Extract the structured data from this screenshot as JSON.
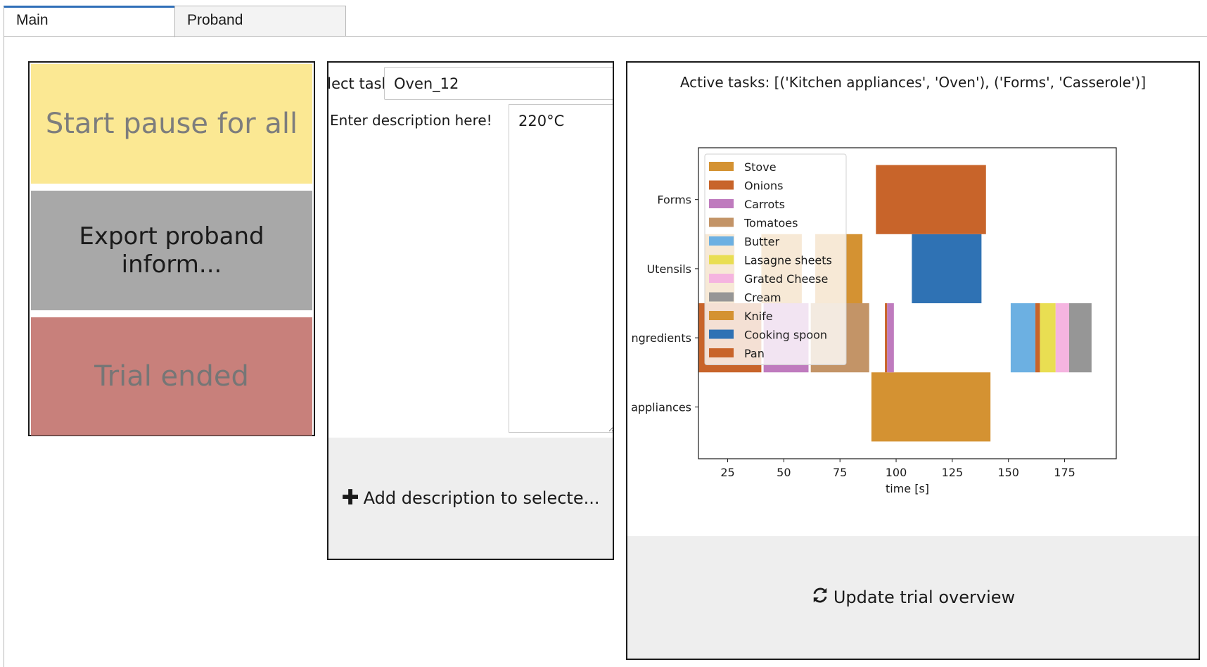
{
  "tabs": [
    {
      "label": "Main",
      "active": true
    },
    {
      "label": "Proband",
      "active": false
    }
  ],
  "controls": {
    "start_pause_label": "Start pause for all",
    "export_label": "Export proband inform...",
    "trial_ended_label": "Trial ended",
    "colors": {
      "pause": "#fbe893",
      "export": "#a8a8a8",
      "trial_ended": "#c8807b"
    }
  },
  "description": {
    "select_task_label": "Select task",
    "task_value": "Oven_12",
    "desc_label": "Enter description here!",
    "desc_value": "220°C",
    "add_button_label": "Add description to selecte...",
    "add_button_icon": "plus-icon"
  },
  "overview": {
    "title": "Active tasks: [('Kitchen appliances', 'Oven'), ('Forms', 'Casserole')]",
    "update_button_label": "Update trial overview",
    "update_button_icon": "refresh-icon"
  },
  "chart_data": {
    "type": "bar",
    "orientation": "horizontal-gantt",
    "title": "",
    "xlabel": "time [s]",
    "ylabel": "",
    "xlim": [
      12,
      198
    ],
    "x_ticks": [
      25,
      50,
      75,
      100,
      125,
      150,
      175
    ],
    "categories": [
      "Kitchen appliances",
      "Ingredients",
      "Utensils",
      "Forms"
    ],
    "category_tick_labels": [
      "appliances",
      "ngredients",
      "Utensils",
      "Forms"
    ],
    "legend_position": "upper left",
    "series": [
      {
        "name": "Stove",
        "color": "#d49232",
        "segments": [
          {
            "category": "Kitchen appliances",
            "start": 89,
            "end": 142
          }
        ]
      },
      {
        "name": "Onions",
        "color": "#c8642a",
        "segments": [
          {
            "category": "Ingredients",
            "start": 12,
            "end": 40
          },
          {
            "category": "Ingredients",
            "start": 95,
            "end": 96
          }
        ]
      },
      {
        "name": "Carrots",
        "color": "#bf7bbe",
        "segments": [
          {
            "category": "Ingredients",
            "start": 41,
            "end": 61
          },
          {
            "category": "Ingredients",
            "start": 96,
            "end": 99
          }
        ]
      },
      {
        "name": "Tomatoes",
        "color": "#c39467",
        "segments": [
          {
            "category": "Ingredients",
            "start": 62,
            "end": 88
          }
        ]
      },
      {
        "name": "Butter",
        "color": "#6cb0e2",
        "segments": [
          {
            "category": "Ingredients",
            "start": 151,
            "end": 162
          }
        ]
      },
      {
        "name": "Lasagne sheets",
        "color": "#e9de52",
        "segments": [
          {
            "category": "Ingredients",
            "start": 164,
            "end": 171
          }
        ]
      },
      {
        "name": "Grated Cheese",
        "color": "#f5b4e0",
        "segments": [
          {
            "category": "Ingredients",
            "start": 171,
            "end": 177
          }
        ]
      },
      {
        "name": "Cream",
        "color": "#969696",
        "segments": [
          {
            "category": "Ingredients",
            "start": 177,
            "end": 187
          }
        ]
      },
      {
        "name": "Knife",
        "color": "#d49232",
        "segments": [
          {
            "category": "Utensils",
            "start": 15,
            "end": 28
          },
          {
            "category": "Utensils",
            "start": 40,
            "end": 58
          },
          {
            "category": "Utensils",
            "start": 64,
            "end": 85
          }
        ]
      },
      {
        "name": "Cooking spoon",
        "color": "#2f72b4",
        "segments": [
          {
            "category": "Utensils",
            "start": 107,
            "end": 138
          }
        ]
      },
      {
        "name": "Pan",
        "color": "#c8642a",
        "segments": [
          {
            "category": "Forms",
            "start": 91,
            "end": 140
          },
          {
            "category": "Ingredients",
            "start": 162,
            "end": 164
          }
        ]
      }
    ]
  }
}
